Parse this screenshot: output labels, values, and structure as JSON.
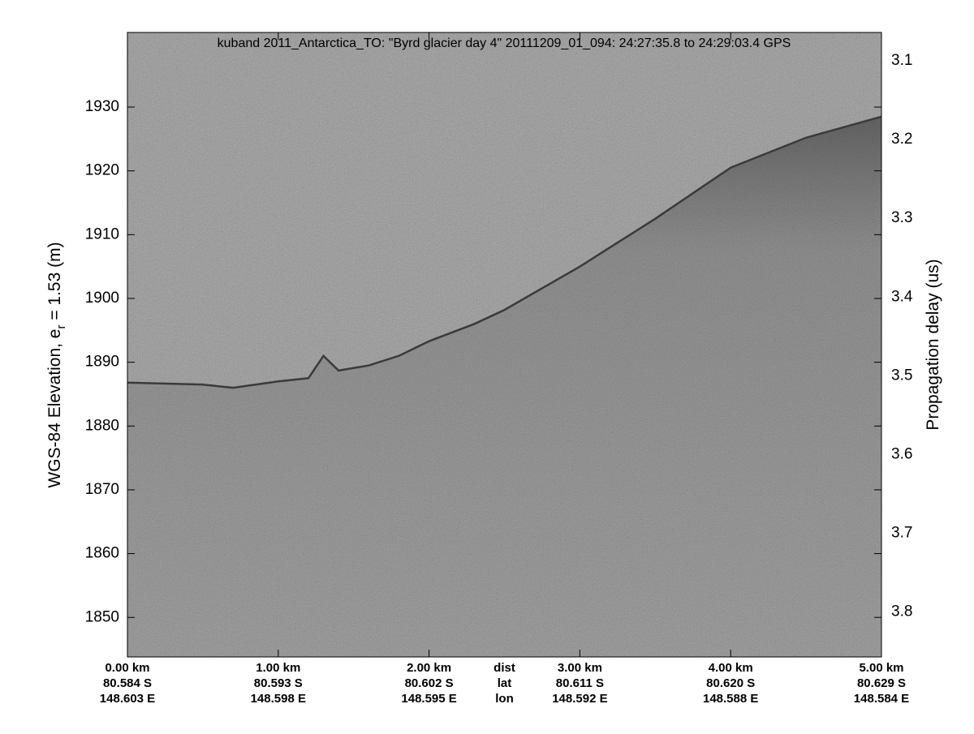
{
  "chart_data": {
    "type": "echogram",
    "title": "kuband 2011_Antarctica_TO: \"Byrd glacier day 4\"  20111209_01_094: 24:27:35.8 to 24:29:03.4 GPS",
    "ylabel": "WGS-84 Elevation, e",
    "ylabel_sub": "r",
    "ylabel_rest": " = 1.53 (m)",
    "y2label": "Propagation delay (us)",
    "xlim": [
      0,
      5
    ],
    "ylim": [
      1843.8,
      1941.7
    ],
    "y2lim": [
      3.857,
      3.064
    ],
    "yticks": [
      1850,
      1860,
      1870,
      1880,
      1890,
      1900,
      1910,
      1920,
      1930
    ],
    "y2ticks": [
      3.1,
      3.2,
      3.3,
      3.4,
      3.5,
      3.6,
      3.7,
      3.8
    ],
    "xticks": [
      {
        "value": 0,
        "label": "0.00 km"
      },
      {
        "value": 1,
        "label": "1.00 km"
      },
      {
        "value": 2,
        "label": "2.00 km"
      },
      {
        "value": 3,
        "label": "3.00 km"
      },
      {
        "value": 4,
        "label": "4.00 km"
      },
      {
        "value": 5,
        "label": "5.00 km"
      }
    ],
    "xtick_lat": [
      "80.584 S",
      "80.593 S",
      "80.602 S",
      "80.611 S",
      "80.620 S",
      "80.629 S"
    ],
    "xtick_lon": [
      "148.603 E",
      "148.598 E",
      "148.595 E",
      "148.592 E",
      "148.588 E",
      "148.584 E"
    ],
    "row_labels": [
      "dist",
      "lat",
      "lon"
    ],
    "row_labels_x": 2.5,
    "series": [
      {
        "name": "surface",
        "color": "#3a3a3a",
        "x": [
          0,
          0.5,
          0.7,
          1.0,
          1.2,
          1.3,
          1.4,
          1.6,
          1.8,
          2.0,
          2.3,
          2.5,
          3.0,
          3.5,
          4.0,
          4.5,
          5.0
        ],
        "values": [
          1886.8,
          1886.5,
          1886,
          1887,
          1887.5,
          1891,
          1888.7,
          1889.5,
          1891,
          1893.3,
          1896,
          1898.2,
          1905,
          1912.5,
          1920.5,
          1925.2,
          1928.5
        ]
      }
    ]
  }
}
